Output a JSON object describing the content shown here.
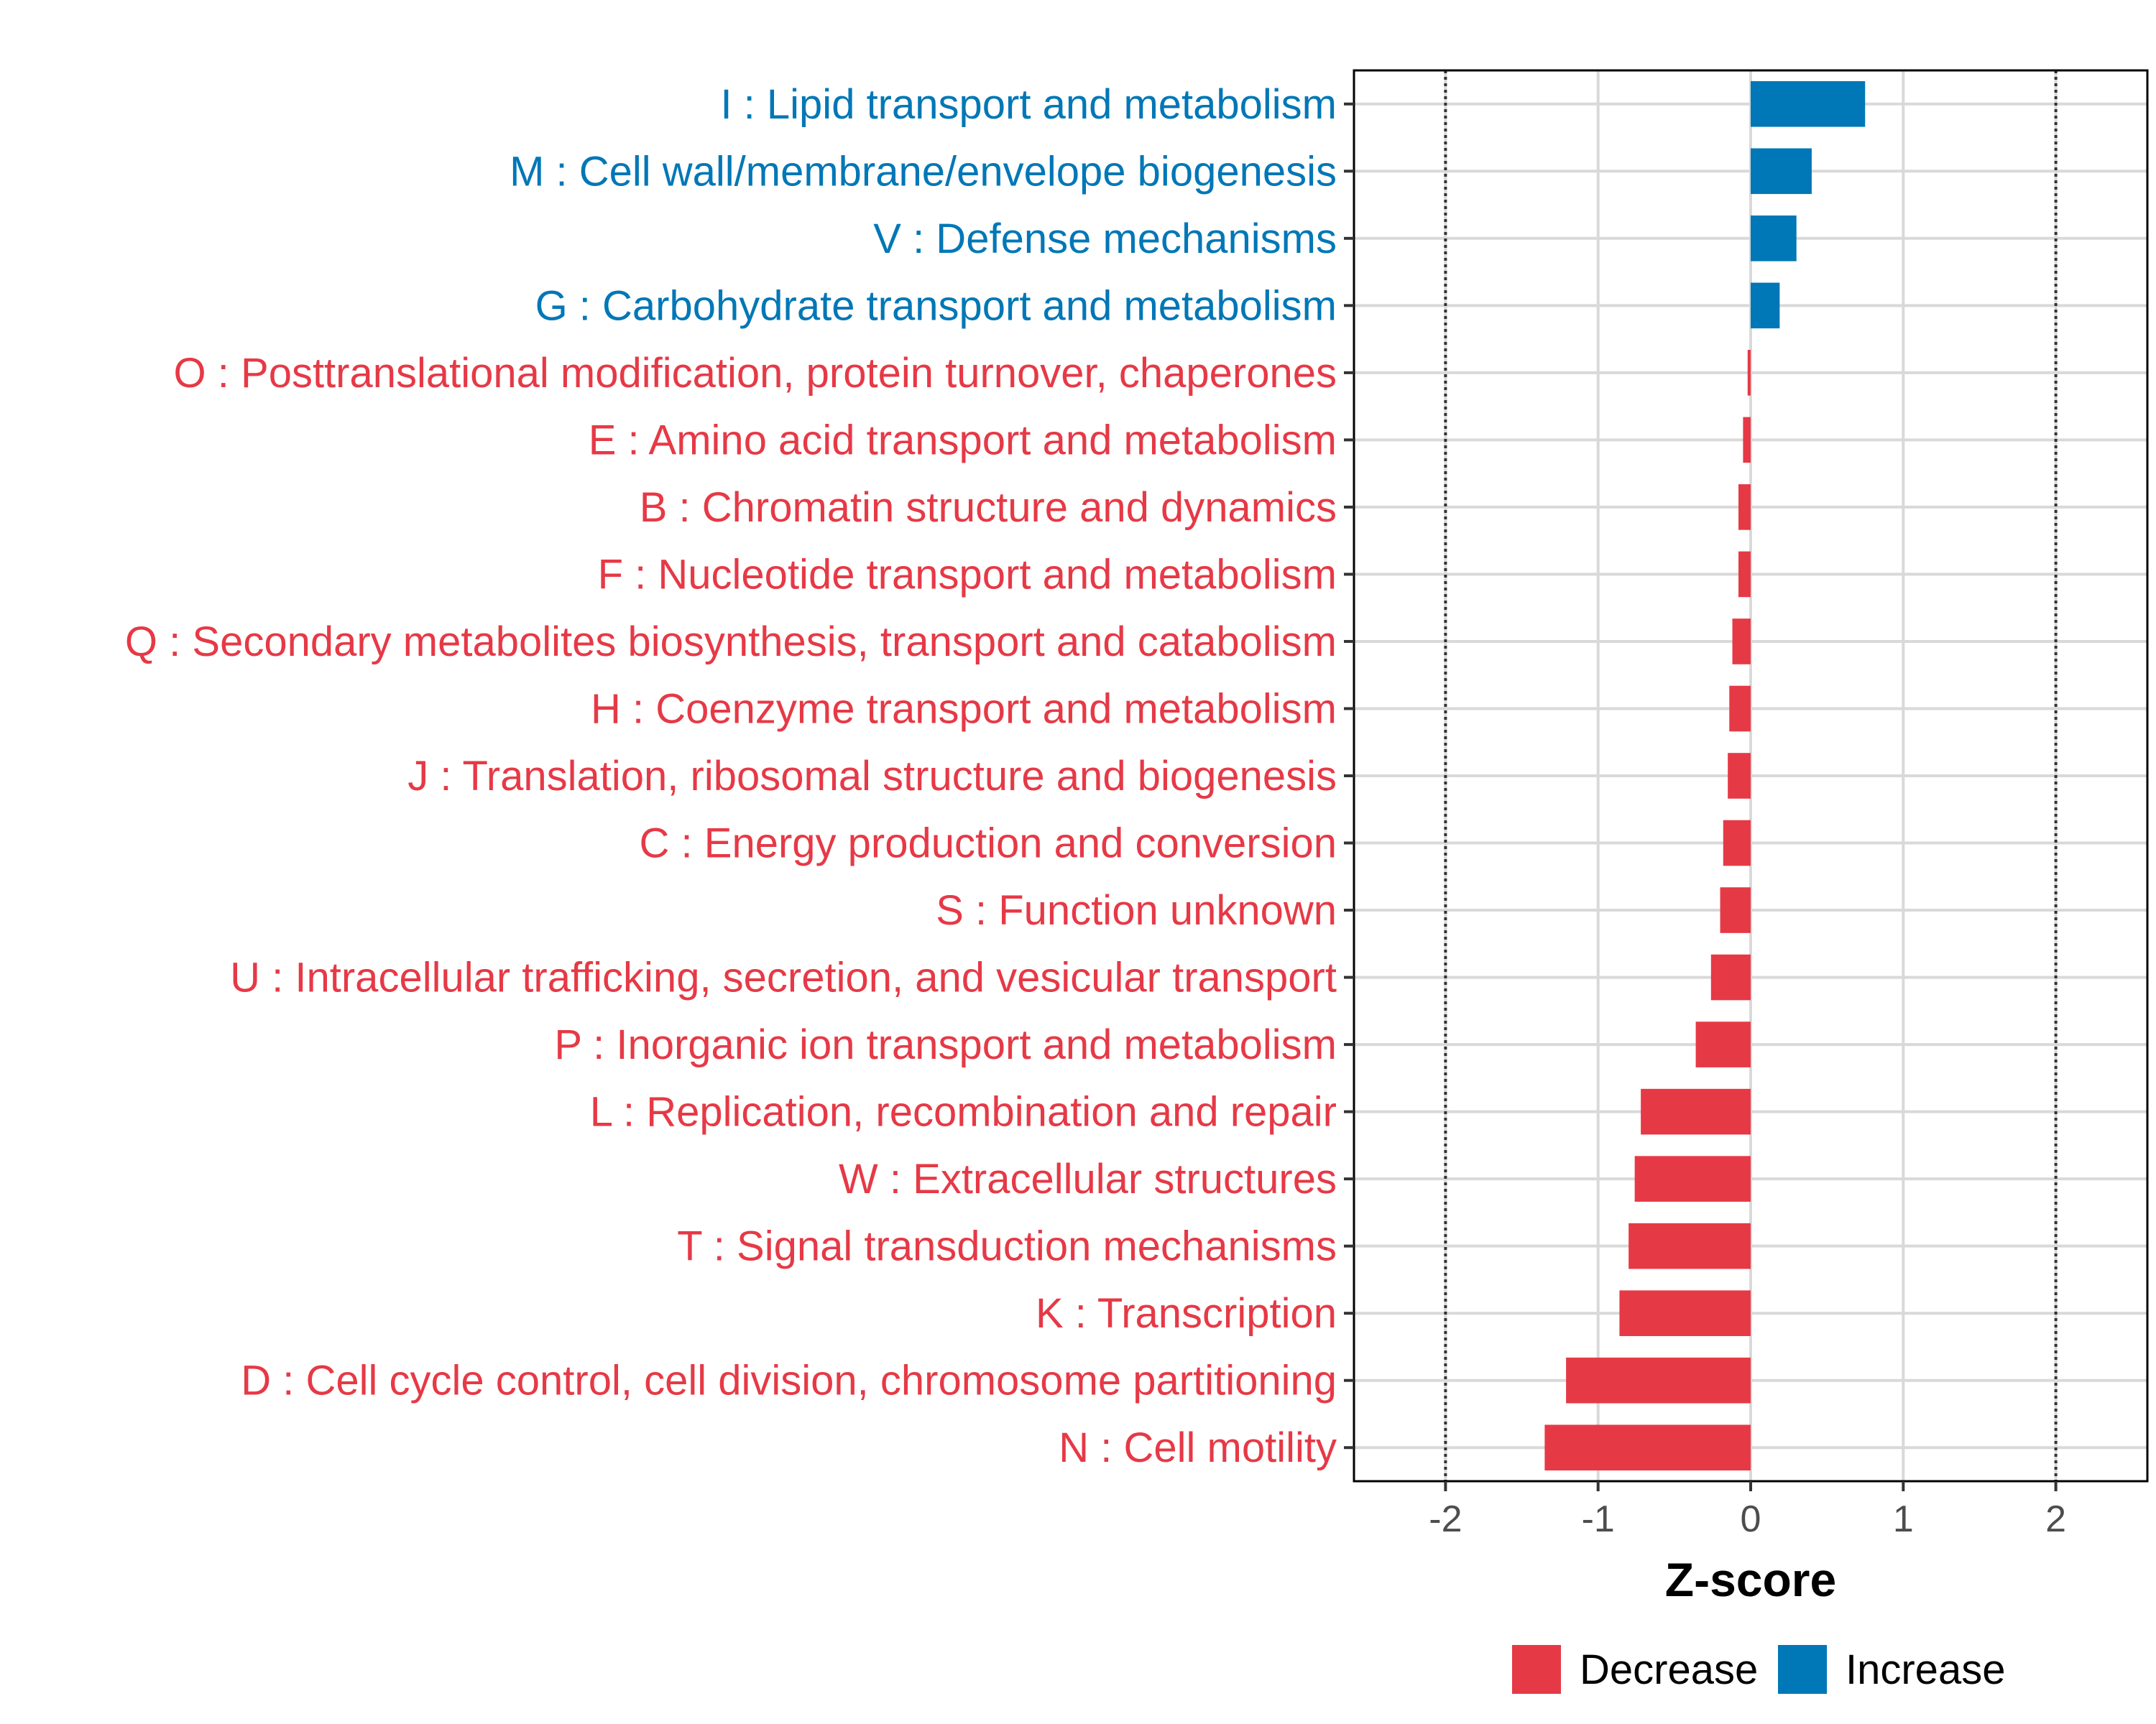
{
  "chart_data": {
    "type": "bar",
    "orientation": "horizontal",
    "title": "",
    "xlabel": "Z-score",
    "ylabel": "",
    "xlim": [
      -2.6,
      2.6
    ],
    "x_ticks": [
      -2,
      -1,
      0,
      1,
      2
    ],
    "x_tick_labels": [
      "-2",
      "-1",
      "0",
      "1",
      "2"
    ],
    "reference_lines": [
      -2,
      2
    ],
    "grid": true,
    "categories": [
      "I : Lipid transport and metabolism",
      "M : Cell wall/membrane/envelope biogenesis",
      "V : Defense mechanisms",
      "G : Carbohydrate transport and metabolism",
      "O : Posttranslational modification, protein turnover, chaperones",
      "E : Amino acid transport and metabolism",
      "B : Chromatin structure and dynamics",
      "F : Nucleotide transport and metabolism",
      "Q : Secondary metabolites biosynthesis, transport and catabolism",
      "H : Coenzyme transport and metabolism",
      "J : Translation, ribosomal structure and biogenesis",
      "C : Energy production and conversion",
      "S : Function unknown",
      "U : Intracellular trafficking, secretion, and vesicular transport",
      "P : Inorganic ion transport and metabolism",
      "L : Replication, recombination and repair",
      "W : Extracellular structures",
      "T : Signal transduction mechanisms",
      "K : Transcription",
      "D : Cell cycle control, cell division, chromosome partitioning",
      "N : Cell motility"
    ],
    "values": [
      0.75,
      0.4,
      0.3,
      0.19,
      -0.02,
      -0.05,
      -0.08,
      -0.08,
      -0.12,
      -0.14,
      -0.15,
      -0.18,
      -0.2,
      -0.26,
      -0.36,
      -0.72,
      -0.76,
      -0.8,
      -0.86,
      -1.21,
      -1.35
    ],
    "groups": [
      "Increase",
      "Increase",
      "Increase",
      "Increase",
      "Decrease",
      "Decrease",
      "Decrease",
      "Decrease",
      "Decrease",
      "Decrease",
      "Decrease",
      "Decrease",
      "Decrease",
      "Decrease",
      "Decrease",
      "Decrease",
      "Decrease",
      "Decrease",
      "Decrease",
      "Decrease",
      "Decrease"
    ],
    "legend": {
      "position": "bottom-right",
      "entries": [
        {
          "label": "Decrease",
          "color": "#e63946"
        },
        {
          "label": "Increase",
          "color": "#0077b6"
        }
      ]
    },
    "colors": {
      "Decrease": "#e63946",
      "Increase": "#0077b6"
    }
  }
}
